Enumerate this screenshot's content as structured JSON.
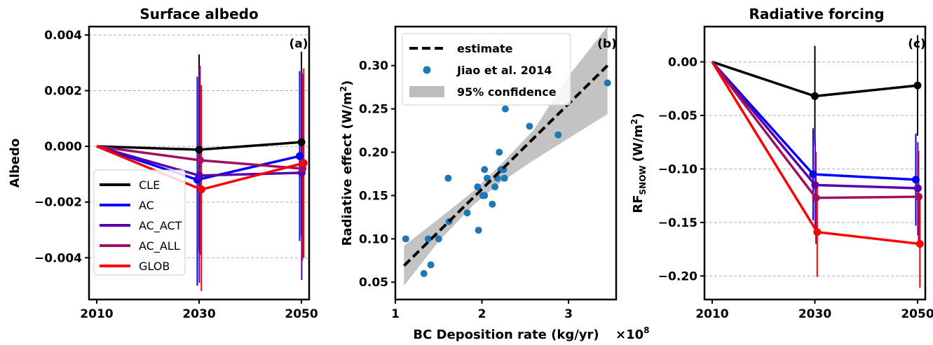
{
  "colors": {
    "CLE": "#000000",
    "AC": "#0000ff",
    "AC_ACT": "#5a00aa",
    "AC_ALL": "#a01060",
    "GLOB": "#ff0000",
    "scatter": "#1f77b4",
    "confidence": "#bdbdbd"
  },
  "chart_data": [
    {
      "type": "line",
      "title": "Surface albedo",
      "xlabel": "",
      "ylabel": "Albedo",
      "panel_label": "(a)",
      "x": [
        2010,
        2030,
        2050
      ],
      "xticks": [
        2010,
        2030,
        2050
      ],
      "xtick_labels": [
        "2010",
        "2030",
        "2050"
      ],
      "xlim": [
        2008.5,
        2051.5
      ],
      "ylim": [
        -0.0055,
        0.0043
      ],
      "yticks": [
        0.004,
        0.002,
        0.0,
        -0.002,
        -0.004
      ],
      "ytick_labels": [
        "0.004",
        "0.002",
        "0.000",
        "−0.002",
        "−0.004"
      ],
      "grid": true,
      "legend_position": "lower-left",
      "series": [
        {
          "name": "CLE",
          "color_key": "CLE",
          "values": [
            0.0,
            -0.00012,
            0.00015
          ],
          "err_low": [
            null,
            -0.0038,
            -0.0032
          ],
          "err_high": [
            null,
            0.0033,
            0.0034
          ],
          "offset": [
            0,
            0,
            0
          ]
        },
        {
          "name": "AC",
          "color_key": "AC",
          "values": [
            0.0,
            -0.0012,
            -0.00035
          ],
          "err_low": [
            null,
            -0.005,
            -0.0034
          ],
          "err_high": [
            null,
            0.0025,
            0.0027
          ],
          "offset": [
            0,
            -0.35,
            -0.35
          ]
        },
        {
          "name": "AC_ACT",
          "color_key": "AC_ACT",
          "values": [
            0.0,
            -0.00105,
            -0.00095
          ],
          "err_low": [
            null,
            -0.0049,
            -0.0048
          ],
          "err_high": [
            null,
            0.0028,
            0.0027
          ],
          "offset": [
            0,
            0.05,
            0.05
          ]
        },
        {
          "name": "AC_ALL",
          "color_key": "AC_ALL",
          "values": [
            0.0,
            -0.0005,
            -0.0008
          ],
          "err_low": [
            null,
            -0.0039,
            -0.0041
          ],
          "err_high": [
            null,
            0.0029,
            0.0026
          ],
          "offset": [
            0,
            0.2,
            0.2
          ]
        },
        {
          "name": "GLOB",
          "color_key": "GLOB",
          "values": [
            0.0,
            -0.00155,
            -0.0006
          ],
          "err_low": [
            null,
            -0.0052,
            -0.004
          ],
          "err_high": [
            null,
            0.0022,
            0.0028
          ],
          "offset": [
            0,
            0.45,
            0.45
          ]
        }
      ]
    },
    {
      "type": "scatter",
      "title": "",
      "xlabel": "BC Deposition rate (kg/yr)",
      "x_multiplier": "×10",
      "x_multiplier_exp": "8",
      "ylabel": "Radiative effect (W/m",
      "ylabel_sup": "2",
      "ylabel_end": ")",
      "panel_label": "(b)",
      "xlim": [
        1.0,
        3.55
      ],
      "ylim": [
        0.03,
        0.345
      ],
      "xticks": [
        1,
        2,
        3
      ],
      "xtick_labels": [
        "1",
        "2",
        "3"
      ],
      "yticks": [
        0.05,
        0.1,
        0.15,
        0.2,
        0.25,
        0.3
      ],
      "ytick_labels": [
        "0.05",
        "0.10",
        "0.15",
        "0.20",
        "0.25",
        "0.30"
      ],
      "grid": false,
      "legend_position": "top-left",
      "legend": [
        "estimate",
        "Jiao et al. 2014",
        "95% confidence"
      ],
      "points": [
        [
          1.12,
          0.1
        ],
        [
          1.33,
          0.06
        ],
        [
          1.38,
          0.1
        ],
        [
          1.41,
          0.07
        ],
        [
          1.5,
          0.1
        ],
        [
          1.62,
          0.12
        ],
        [
          1.61,
          0.17
        ],
        [
          1.83,
          0.13
        ],
        [
          1.95,
          0.16
        ],
        [
          1.96,
          0.11
        ],
        [
          2.01,
          0.15
        ],
        [
          2.03,
          0.15
        ],
        [
          2.03,
          0.18
        ],
        [
          2.06,
          0.17
        ],
        [
          2.12,
          0.14
        ],
        [
          2.15,
          0.16
        ],
        [
          2.18,
          0.17
        ],
        [
          2.2,
          0.2
        ],
        [
          2.22,
          0.18
        ],
        [
          2.25,
          0.18
        ],
        [
          2.26,
          0.17
        ],
        [
          2.27,
          0.25
        ],
        [
          2.55,
          0.23
        ],
        [
          2.88,
          0.22
        ],
        [
          3.45,
          0.28
        ]
      ],
      "fit": {
        "x": [
          1.1,
          3.45
        ],
        "y": [
          0.069,
          0.3
        ]
      },
      "band": {
        "x": [
          1.1,
          1.5,
          1.9,
          2.2,
          2.6,
          3.0,
          3.45
        ],
        "lower": [
          0.046,
          0.097,
          0.139,
          0.164,
          0.191,
          0.216,
          0.244
        ],
        "upper": [
          0.092,
          0.123,
          0.155,
          0.184,
          0.226,
          0.288,
          0.355
        ]
      }
    },
    {
      "type": "line",
      "title": "Radiative forcing",
      "xlabel": "",
      "ylabel": "RF",
      "ylabel_sub": "SNOW",
      "ylabel_unit": "(W/m",
      "ylabel_sup": "2",
      "ylabel_end": ")",
      "panel_label": "(c)",
      "x": [
        2010,
        2030,
        2050
      ],
      "xticks": [
        2010,
        2030,
        2050
      ],
      "xtick_labels": [
        "2010",
        "2030",
        "2050"
      ],
      "xlim": [
        2008.5,
        2051.5
      ],
      "ylim": [
        -0.222,
        0.033
      ],
      "yticks": [
        0.0,
        -0.05,
        -0.1,
        -0.15,
        -0.2
      ],
      "ytick_labels": [
        "0.00",
        "−0.05",
        "−0.10",
        "−0.15",
        "−0.20"
      ],
      "grid": true,
      "series": [
        {
          "name": "CLE",
          "color_key": "CLE",
          "values": [
            0.0,
            -0.032,
            -0.022
          ],
          "err_low": [
            null,
            -0.078,
            -0.069
          ],
          "err_high": [
            null,
            0.015,
            0.025
          ],
          "offset": [
            0,
            0,
            0
          ]
        },
        {
          "name": "AC",
          "color_key": "AC",
          "values": [
            0.0,
            -0.105,
            -0.11
          ],
          "err_low": [
            null,
            -0.148,
            -0.153
          ],
          "err_high": [
            null,
            -0.062,
            -0.067
          ],
          "offset": [
            0,
            -0.35,
            -0.35
          ]
        },
        {
          "name": "AC_ACT",
          "color_key": "AC_ACT",
          "values": [
            0.0,
            -0.115,
            -0.118
          ],
          "err_low": [
            null,
            -0.158,
            -0.162
          ],
          "err_high": [
            null,
            -0.072,
            -0.075
          ],
          "offset": [
            0,
            0.05,
            0.05
          ]
        },
        {
          "name": "AC_ALL",
          "color_key": "AC_ALL",
          "values": [
            0.0,
            -0.127,
            -0.126
          ],
          "err_low": [
            null,
            -0.17,
            -0.169
          ],
          "err_high": [
            null,
            -0.084,
            -0.083
          ],
          "offset": [
            0,
            0.2,
            0.2
          ]
        },
        {
          "name": "GLOB",
          "color_key": "GLOB",
          "values": [
            0.0,
            -0.159,
            -0.17
          ],
          "err_low": [
            null,
            -0.201,
            -0.211
          ],
          "err_high": [
            null,
            -0.117,
            -0.129
          ],
          "offset": [
            0,
            0.45,
            0.45
          ]
        }
      ]
    }
  ],
  "legend_a": [
    {
      "label": "CLE",
      "color_key": "CLE"
    },
    {
      "label": "AC",
      "color_key": "AC"
    },
    {
      "label": "AC_ACT",
      "color_key": "AC_ACT"
    },
    {
      "label": "AC_ALL",
      "color_key": "AC_ALL"
    },
    {
      "label": "GLOB",
      "color_key": "GLOB"
    }
  ]
}
